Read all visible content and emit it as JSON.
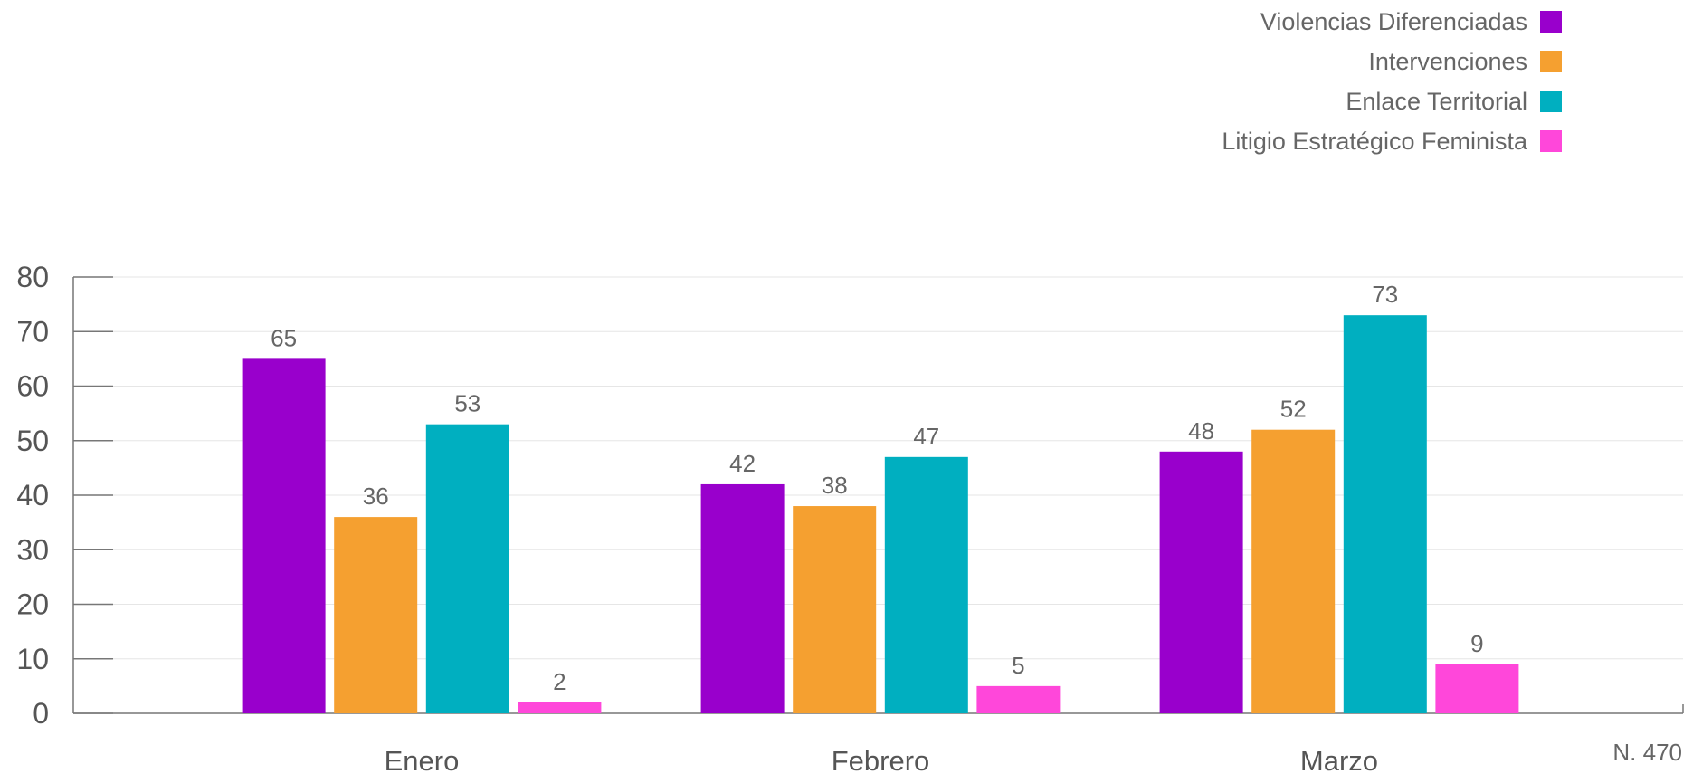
{
  "chart_data": {
    "type": "bar",
    "categories": [
      "Enero",
      "Febrero",
      "Marzo"
    ],
    "series": [
      {
        "name": "Violencias Diferenciadas",
        "values": [
          65,
          42,
          48
        ],
        "color": "#9900CC"
      },
      {
        "name": "Intervenciones",
        "values": [
          36,
          38,
          52
        ],
        "color": "#F5A030"
      },
      {
        "name": "Enlace Territorial",
        "values": [
          53,
          47,
          73
        ],
        "color": "#00AFC0"
      },
      {
        "name": "Litigio Estratégico Feminista",
        "values": [
          2,
          5,
          9
        ],
        "color": "#FF47DA"
      }
    ],
    "ylim": [
      0,
      80
    ],
    "yticks": [
      0,
      10,
      20,
      30,
      40,
      50,
      60,
      70,
      80
    ],
    "xlabel": "",
    "ylabel": "",
    "title": "",
    "legend_position": "top-right",
    "grid": true
  },
  "legend": {
    "items": [
      {
        "label": "Violencias Diferenciadas",
        "color": "#9900CC"
      },
      {
        "label": "Intervenciones",
        "color": "#F5A030"
      },
      {
        "label": "Enlace Territorial",
        "color": "#00AFC0"
      },
      {
        "label": "Litigio Estratégico Feminista",
        "color": "#FF47DA"
      }
    ]
  },
  "note": "N. 470"
}
